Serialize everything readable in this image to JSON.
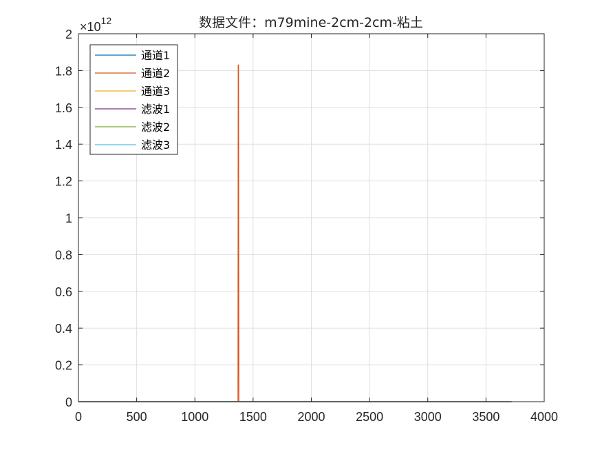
{
  "chart_data": {
    "type": "line",
    "title": "数据文件：m79mine-2cm-2cm-粘土",
    "xlim": [
      0,
      4000
    ],
    "ylim": [
      0,
      2
    ],
    "y_exponent_label": {
      "base": "×10",
      "exp": "12"
    },
    "xticks": [
      0,
      500,
      1000,
      1500,
      2000,
      2500,
      3000,
      3500,
      4000
    ],
    "xtick_labels": [
      "0",
      "500",
      "1000",
      "1500",
      "2000",
      "2500",
      "3000",
      "3500",
      "4000"
    ],
    "yticks": [
      0,
      0.2,
      0.4,
      0.6,
      0.8,
      1,
      1.2,
      1.4,
      1.6,
      1.8,
      2
    ],
    "ytick_labels": [
      "0",
      "0.2",
      "0.4",
      "0.6",
      "0.8",
      "1",
      "1.2",
      "1.4",
      "1.6",
      "1.8",
      "2"
    ],
    "grid": true,
    "legend_position": "top-left",
    "series": [
      {
        "name": "通道1",
        "color": "#0072BD",
        "x": [
          0,
          3720
        ],
        "y": [
          0,
          0
        ]
      },
      {
        "name": "通道2",
        "color": "#D95319",
        "x": [
          0,
          1370,
          1372,
          1375,
          1378,
          3720
        ],
        "y": [
          0,
          0,
          1.83,
          1.83,
          0,
          0
        ]
      },
      {
        "name": "通道3",
        "color": "#EDB120",
        "x": [
          0,
          3720
        ],
        "y": [
          0,
          0
        ]
      },
      {
        "name": "滤波1",
        "color": "#7E2F8E",
        "x": [
          0,
          3720
        ],
        "y": [
          0,
          0
        ]
      },
      {
        "name": "滤波2",
        "color": "#77AC30",
        "x": [
          0,
          3720
        ],
        "y": [
          0,
          0
        ]
      },
      {
        "name": "滤波3",
        "color": "#4DBEEE",
        "x": [
          0,
          3720
        ],
        "y": [
          0,
          0
        ]
      }
    ]
  }
}
